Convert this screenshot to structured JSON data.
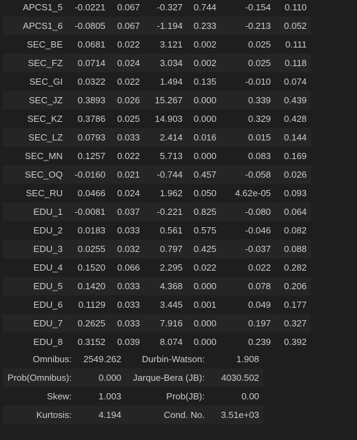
{
  "coefficients": {
    "rows": [
      {
        "name": "APCS1_5",
        "coef": "-0.0221",
        "std_err": "0.067",
        "t": "-0.327",
        "p": "0.744",
        "ci_low": "-0.154",
        "ci_high": "0.110"
      },
      {
        "name": "APCS1_6",
        "coef": "-0.0805",
        "std_err": "0.067",
        "t": "-1.194",
        "p": "0.233",
        "ci_low": "-0.213",
        "ci_high": "0.052"
      },
      {
        "name": "SEC_BE",
        "coef": "0.0681",
        "std_err": "0.022",
        "t": "3.121",
        "p": "0.002",
        "ci_low": "0.025",
        "ci_high": "0.111"
      },
      {
        "name": "SEC_FZ",
        "coef": "0.0714",
        "std_err": "0.024",
        "t": "3.034",
        "p": "0.002",
        "ci_low": "0.025",
        "ci_high": "0.118"
      },
      {
        "name": "SEC_GI",
        "coef": "0.0322",
        "std_err": "0.022",
        "t": "1.494",
        "p": "0.135",
        "ci_low": "-0.010",
        "ci_high": "0.074"
      },
      {
        "name": "SEC_JZ",
        "coef": "0.3893",
        "std_err": "0.026",
        "t": "15.267",
        "p": "0.000",
        "ci_low": "0.339",
        "ci_high": "0.439"
      },
      {
        "name": "SEC_KZ",
        "coef": "0.3786",
        "std_err": "0.025",
        "t": "14.903",
        "p": "0.000",
        "ci_low": "0.329",
        "ci_high": "0.428"
      },
      {
        "name": "SEC_LZ",
        "coef": "0.0793",
        "std_err": "0.033",
        "t": "2.414",
        "p": "0.016",
        "ci_low": "0.015",
        "ci_high": "0.144"
      },
      {
        "name": "SEC_MN",
        "coef": "0.1257",
        "std_err": "0.022",
        "t": "5.713",
        "p": "0.000",
        "ci_low": "0.083",
        "ci_high": "0.169"
      },
      {
        "name": "SEC_OQ",
        "coef": "-0.0160",
        "std_err": "0.021",
        "t": "-0.744",
        "p": "0.457",
        "ci_low": "-0.058",
        "ci_high": "0.026"
      },
      {
        "name": "SEC_RU",
        "coef": "0.0466",
        "std_err": "0.024",
        "t": "1.962",
        "p": "0.050",
        "ci_low": "4.62e-05",
        "ci_high": "0.093"
      },
      {
        "name": "EDU_1",
        "coef": "-0.0081",
        "std_err": "0.037",
        "t": "-0.221",
        "p": "0.825",
        "ci_low": "-0.080",
        "ci_high": "0.064"
      },
      {
        "name": "EDU_2",
        "coef": "0.0183",
        "std_err": "0.033",
        "t": "0.561",
        "p": "0.575",
        "ci_low": "-0.046",
        "ci_high": "0.082"
      },
      {
        "name": "EDU_3",
        "coef": "0.0255",
        "std_err": "0.032",
        "t": "0.797",
        "p": "0.425",
        "ci_low": "-0.037",
        "ci_high": "0.088"
      },
      {
        "name": "EDU_4",
        "coef": "0.1520",
        "std_err": "0.066",
        "t": "2.295",
        "p": "0.022",
        "ci_low": "0.022",
        "ci_high": "0.282"
      },
      {
        "name": "EDU_5",
        "coef": "0.1420",
        "std_err": "0.033",
        "t": "4.368",
        "p": "0.000",
        "ci_low": "0.078",
        "ci_high": "0.206"
      },
      {
        "name": "EDU_6",
        "coef": "0.1129",
        "std_err": "0.033",
        "t": "3.445",
        "p": "0.001",
        "ci_low": "0.049",
        "ci_high": "0.177"
      },
      {
        "name": "EDU_7",
        "coef": "0.2625",
        "std_err": "0.033",
        "t": "7.916",
        "p": "0.000",
        "ci_low": "0.197",
        "ci_high": "0.327"
      },
      {
        "name": "EDU_8",
        "coef": "0.3152",
        "std_err": "0.039",
        "t": "8.074",
        "p": "0.000",
        "ci_low": "0.239",
        "ci_high": "0.392"
      }
    ]
  },
  "diagnostics": {
    "rows": [
      {
        "k1": "Omnibus:",
        "v1": "2549.262",
        "k2": "Durbin-Watson:",
        "v2": "1.908"
      },
      {
        "k1": "Prob(Omnibus):",
        "v1": "0.000",
        "k2": "Jarque-Bera (JB):",
        "v2": "4030.502"
      },
      {
        "k1": "Skew:",
        "v1": "1.003",
        "k2": "Prob(JB):",
        "v2": "0.00"
      },
      {
        "k1": "Kurtosis:",
        "v1": "4.194",
        "k2": "Cond. No.",
        "v2": "3.51e+03"
      }
    ]
  },
  "colors": {
    "background": "#1e1e1e",
    "row_stripe": "#252526",
    "text": "#cccccc"
  }
}
